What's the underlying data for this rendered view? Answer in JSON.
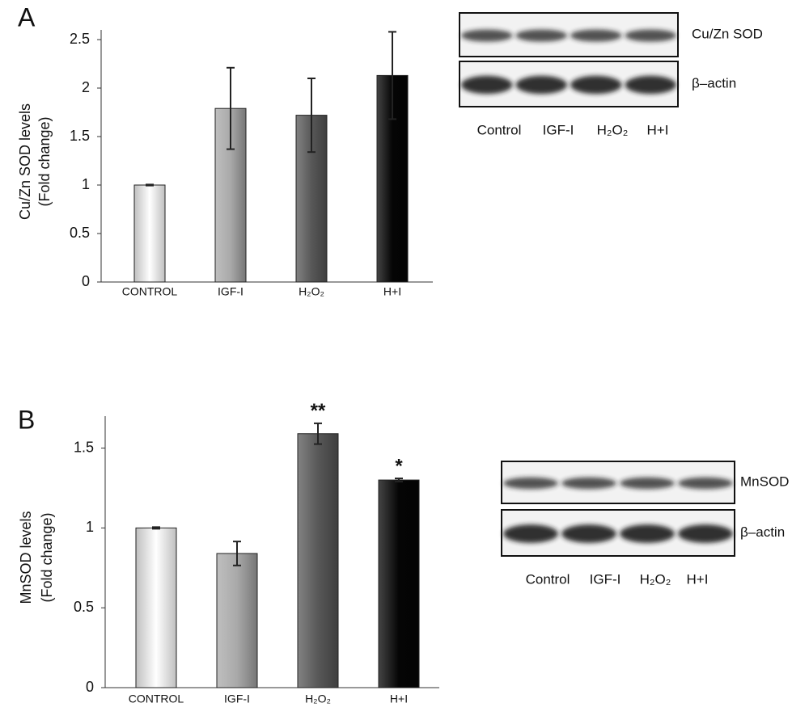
{
  "chart_data": [
    {
      "type": "bar",
      "panel_label": "A",
      "ylabel": [
        "Cu/Zn SOD levels",
        "(Fold change)"
      ],
      "categories": [
        "CONTROL",
        "IGF-I",
        "H₂O₂",
        "H+I"
      ],
      "values": [
        1.0,
        1.79,
        1.72,
        2.13
      ],
      "errors": [
        0.005,
        0.42,
        0.38,
        0.45
      ],
      "colors": [
        "#ffffff",
        "#a9a9a9",
        "#585858",
        "#050505"
      ],
      "annotations": [
        null,
        null,
        null,
        null
      ],
      "ylim": [
        0,
        2.6
      ],
      "yticks": [
        0,
        0.5,
        1,
        1.5,
        2,
        2.5
      ],
      "blot_labels": [
        "Cu/Zn SOD",
        "β–actin"
      ],
      "blot_lanes": [
        "Control",
        "IGF-I",
        "H₂O₂",
        "H+I"
      ]
    },
    {
      "type": "bar",
      "panel_label": "B",
      "ylabel": [
        "MnSOD levels",
        "(Fold change)"
      ],
      "categories": [
        "CONTROL",
        "IGF-I",
        "H₂O₂",
        "H+I"
      ],
      "values": [
        1.0,
        0.84,
        1.59,
        1.3
      ],
      "errors": [
        0.005,
        0.075,
        0.065,
        0.01
      ],
      "colors": [
        "#ffffff",
        "#a9a9a9",
        "#585858",
        "#050505"
      ],
      "annotations": [
        null,
        null,
        "**",
        "*"
      ],
      "ylim": [
        0,
        1.7
      ],
      "yticks": [
        0,
        0.5,
        1,
        1.5
      ],
      "blot_labels": [
        "MnSOD",
        "β–actin"
      ],
      "blot_lanes": [
        "Control",
        "IGF-I",
        "H₂O₂",
        "H+I"
      ]
    }
  ]
}
